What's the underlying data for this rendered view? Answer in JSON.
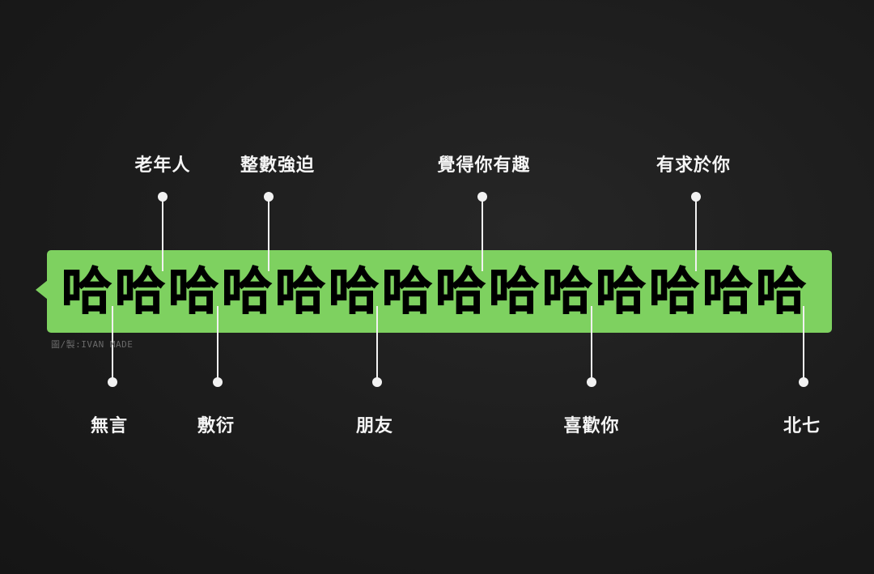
{
  "bubble": {
    "color": "#7ed160",
    "repeated_char": "哈",
    "count": 14
  },
  "labels_top": [
    {
      "text": "老年人"
    },
    {
      "text": "整數強迫"
    },
    {
      "text": "覺得你有趣"
    },
    {
      "text": "有求於你"
    }
  ],
  "labels_bottom": [
    {
      "text": "無言"
    },
    {
      "text": "敷衍"
    },
    {
      "text": "朋友"
    },
    {
      "text": "喜歡你"
    },
    {
      "text": "北七"
    }
  ],
  "credit": "圖/製:IVAN MADE"
}
